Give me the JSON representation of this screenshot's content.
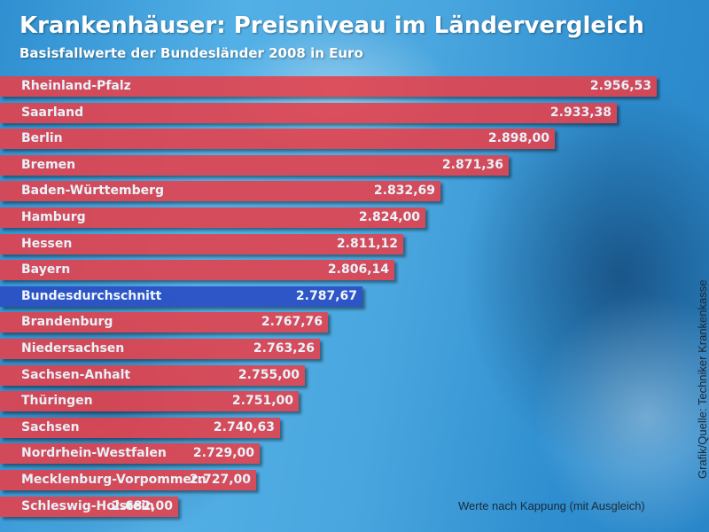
{
  "title": "Krankenhäuser: Preisniveau im Ländervergleich",
  "subtitle": "Basisfallwerte der Bundesländer 2008 in Euro",
  "note": "Werte nach Kappung (mit Ausgleich)",
  "source": "Grafik/Quelle: Techniker Krankenkasse",
  "colors": {
    "bar": "#e8404a",
    "highlight": "#2c4fc4"
  },
  "chart_data": {
    "type": "bar",
    "orientation": "horizontal",
    "categories": [
      "Rheinland-Pfalz",
      "Saarland",
      "Berlin",
      "Bremen",
      "Baden-Württemberg",
      "Hamburg",
      "Hessen",
      "Bayern",
      "Bundesdurchschnitt",
      "Brandenburg",
      "Niedersachsen",
      "Sachsen-Anhalt",
      "Thüringen",
      "Sachsen",
      "Nordrhein-Westfalen",
      "Mecklenburg-Vorpommern",
      "Schleswig-Holstein"
    ],
    "values": [
      2956.53,
      2933.38,
      2898.0,
      2871.36,
      2832.69,
      2824.0,
      2811.12,
      2806.14,
      2787.67,
      2767.76,
      2763.26,
      2755.0,
      2751.0,
      2740.63,
      2729.0,
      2727.0,
      2682.0
    ],
    "value_labels": [
      "2.956,53",
      "2.933,38",
      "2.898,00",
      "2.871,36",
      "2.832,69",
      "2.824,00",
      "2.811,12",
      "2.806,14",
      "2.787,67",
      "2.767,76",
      "2.763,26",
      "2.755,00",
      "2.751,00",
      "2.740,63",
      "2.729,00",
      "2.727,00",
      "2.682,00"
    ],
    "highlight": "Bundesdurchschnitt",
    "title": "Krankenhäuser: Preisniveau im Ländervergleich",
    "subtitle": "Basisfallwerte der Bundesländer 2008 in Euro",
    "xlabel": "",
    "ylabel": "",
    "xlim": [
      2580,
      2960
    ],
    "grid": false,
    "legend": "none"
  }
}
